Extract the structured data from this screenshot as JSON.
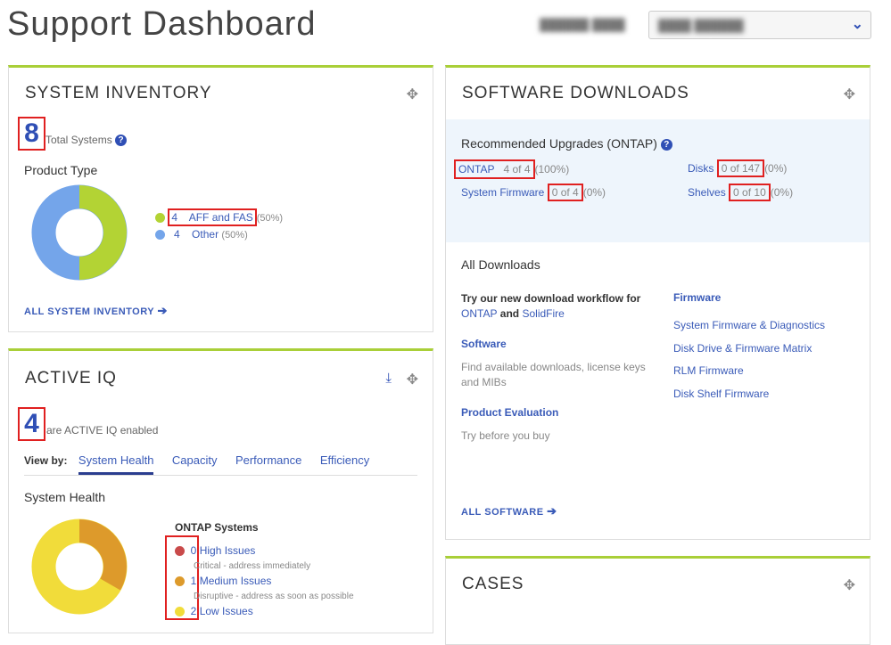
{
  "header": {
    "title": "Support Dashboard"
  },
  "inventory": {
    "title": "SYSTEM INVENTORY",
    "total": "8",
    "total_label": "Total Systems",
    "product_type": "Product Type",
    "legend": [
      {
        "count": "4",
        "label": "AFF and FAS",
        "pct": "(50%)",
        "color": "#b3d334"
      },
      {
        "count": "4",
        "label": "Other",
        "pct": "(50%)",
        "color": "#74a5ea"
      }
    ],
    "all_link": "ALL SYSTEM INVENTORY"
  },
  "activeiq": {
    "title": "ACTIVE IQ",
    "count": "4",
    "count_label": "are ACTIVE IQ enabled",
    "view_by": "View by:",
    "tabs": [
      "System Health",
      "Capacity",
      "Performance",
      "Efficiency"
    ],
    "active_tab": "System Health",
    "section": "System Health",
    "ontap": "ONTAP Systems",
    "issues": [
      {
        "count": "0",
        "label": "High Issues",
        "desc": "Critical - address immediately",
        "color": "#c94a4a"
      },
      {
        "count": "1",
        "label": "Medium Issues",
        "desc": "Disruptive - address as soon as possible",
        "color": "#dd9a2b"
      },
      {
        "count": "2",
        "label": "Low Issues",
        "desc": "",
        "color": "#f1dc3a"
      }
    ]
  },
  "software": {
    "title": "SOFTWARE DOWNLOADS",
    "rec_title": "Recommended Upgrades (ONTAP)",
    "rec": [
      {
        "label": "ONTAP",
        "value": "4 of 4",
        "pct": "(100%)"
      },
      {
        "label": "System Firmware",
        "value": "0 of 4",
        "pct": "(0%)"
      },
      {
        "label": "Disks",
        "value": "0 of 147",
        "pct": "(0%)"
      },
      {
        "label": "Shelves",
        "value": "0 of 10",
        "pct": "(0%)"
      }
    ],
    "all_downloads": "All Downloads",
    "try_text": "Try our new download workflow for",
    "ontap": "ONTAP",
    "and": "and",
    "solidfire": "SolidFire",
    "software_h": "Software",
    "software_desc": "Find available downloads, license keys and MIBs",
    "eval_h": "Product Evaluation",
    "eval_desc": "Try before you buy",
    "firmware_h": "Firmware",
    "firmware_links": [
      "System Firmware & Diagnostics",
      "Disk Drive & Firmware Matrix",
      "RLM Firmware",
      "Disk Shelf Firmware"
    ],
    "all_link": "ALL SOFTWARE"
  },
  "cases": {
    "title": "CASES"
  }
}
